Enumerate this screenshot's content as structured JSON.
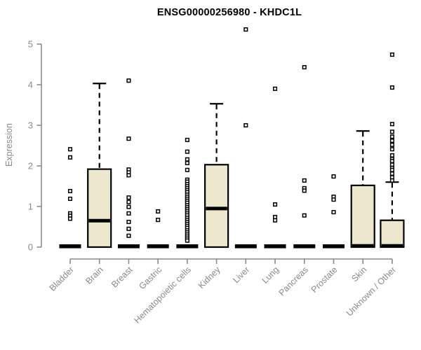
{
  "page": {
    "title": "ENSG00000256980 - KHDC1L"
  },
  "chart_data": {
    "type": "boxplot",
    "title": "ENSG00000256980 - KHDC1L",
    "ylabel": "Expression",
    "xlabel": "",
    "ylim": [
      0,
      5
    ],
    "yticks": [
      0,
      1,
      2,
      3,
      4,
      5
    ],
    "grid": false,
    "legend": "none",
    "colors": {
      "box_fill": "#EDE7CD",
      "box_stroke": "#000000",
      "median": "#000000",
      "whisker": "#000000",
      "outlier_fill": "#ffffff",
      "outlier_stroke": "#000000",
      "axis": "#8a8a8a",
      "tick_text": "#8a8a8a",
      "title_text": "#000000"
    },
    "categories": [
      "Bladder",
      "Brain",
      "Breast",
      "Gastric",
      "Hematopoietic cells",
      "Kidney",
      "Liver",
      "Lung",
      "Pancreas",
      "Prostate",
      "Skin",
      "Unknown / Other"
    ],
    "series": [
      {
        "name": "Bladder",
        "flat": true,
        "q1": 0,
        "median": 0.02,
        "q3": 0.04,
        "whisker_low": 0,
        "whisker_high": 0.04,
        "outliers": [
          2.41,
          2.21,
          1.38,
          1.19,
          0.83,
          0.77,
          0.7
        ]
      },
      {
        "name": "Brain",
        "flat": false,
        "q1": 0,
        "median": 0.65,
        "q3": 1.92,
        "whisker_low": 0,
        "whisker_high": 4.03,
        "outliers": []
      },
      {
        "name": "Breast",
        "flat": true,
        "q1": 0,
        "median": 0.02,
        "q3": 0.04,
        "whisker_low": 0,
        "whisker_high": 0.04,
        "outliers": [
          4.1,
          2.67,
          1.91,
          1.84,
          1.77,
          1.22,
          1.11,
          0.99,
          0.83,
          0.62,
          0.45,
          0.28
        ]
      },
      {
        "name": "Gastric",
        "flat": true,
        "q1": 0,
        "median": 0.02,
        "q3": 0.04,
        "whisker_low": 0,
        "whisker_high": 0.04,
        "outliers": [
          0.88,
          0.67
        ]
      },
      {
        "name": "Hematopoietic cells",
        "flat": true,
        "q1": 0,
        "median": 0.02,
        "q3": 0.04,
        "whisker_low": 0,
        "whisker_high": 0.04,
        "outliers": [
          2.64,
          2.35,
          2.16,
          2.07,
          1.9,
          1.66,
          1.61,
          1.55,
          1.5,
          1.45,
          1.4,
          1.35,
          1.29,
          1.24,
          1.19,
          1.14,
          1.09,
          1.03,
          0.98,
          0.93,
          0.88,
          0.83,
          0.78,
          0.72,
          0.67,
          0.62,
          0.57,
          0.52,
          0.47,
          0.41,
          0.36,
          0.31,
          0.26,
          0.21,
          0.16
        ]
      },
      {
        "name": "Kidney",
        "flat": false,
        "q1": 0,
        "median": 0.95,
        "q3": 2.03,
        "whisker_low": 0,
        "whisker_high": 3.53,
        "outliers": []
      },
      {
        "name": "Liver",
        "flat": true,
        "q1": 0,
        "median": 0.02,
        "q3": 0.04,
        "whisker_low": 0,
        "whisker_high": 0.04,
        "outliers": [
          5.36,
          3.0
        ]
      },
      {
        "name": "Lung",
        "flat": true,
        "q1": 0,
        "median": 0.02,
        "q3": 0.04,
        "whisker_low": 0,
        "whisker_high": 0.04,
        "outliers": [
          3.9,
          1.05,
          0.74,
          0.66
        ]
      },
      {
        "name": "Pancreas",
        "flat": true,
        "q1": 0,
        "median": 0.02,
        "q3": 0.04,
        "whisker_low": 0,
        "whisker_high": 0.04,
        "outliers": [
          4.43,
          1.64,
          1.45,
          1.39,
          0.78
        ]
      },
      {
        "name": "Prostate",
        "flat": true,
        "q1": 0,
        "median": 0.02,
        "q3": 0.04,
        "whisker_low": 0,
        "whisker_high": 0.04,
        "outliers": [
          1.74,
          1.24,
          1.17,
          0.86
        ]
      },
      {
        "name": "Skin",
        "flat": false,
        "q1": 0,
        "median": 0.03,
        "q3": 1.52,
        "whisker_low": 0,
        "whisker_high": 2.86,
        "outliers": []
      },
      {
        "name": "Unknown / Other",
        "flat": false,
        "q1": 0,
        "median": 0.03,
        "q3": 0.66,
        "whisker_low": 0,
        "whisker_high": 1.6,
        "outliers": [
          4.74,
          3.93,
          3.03,
          2.84,
          2.72,
          2.62,
          2.52,
          2.41,
          2.26,
          2.17,
          2.12,
          2.03,
          1.95,
          1.9,
          1.81,
          1.72,
          1.64
        ]
      }
    ]
  }
}
